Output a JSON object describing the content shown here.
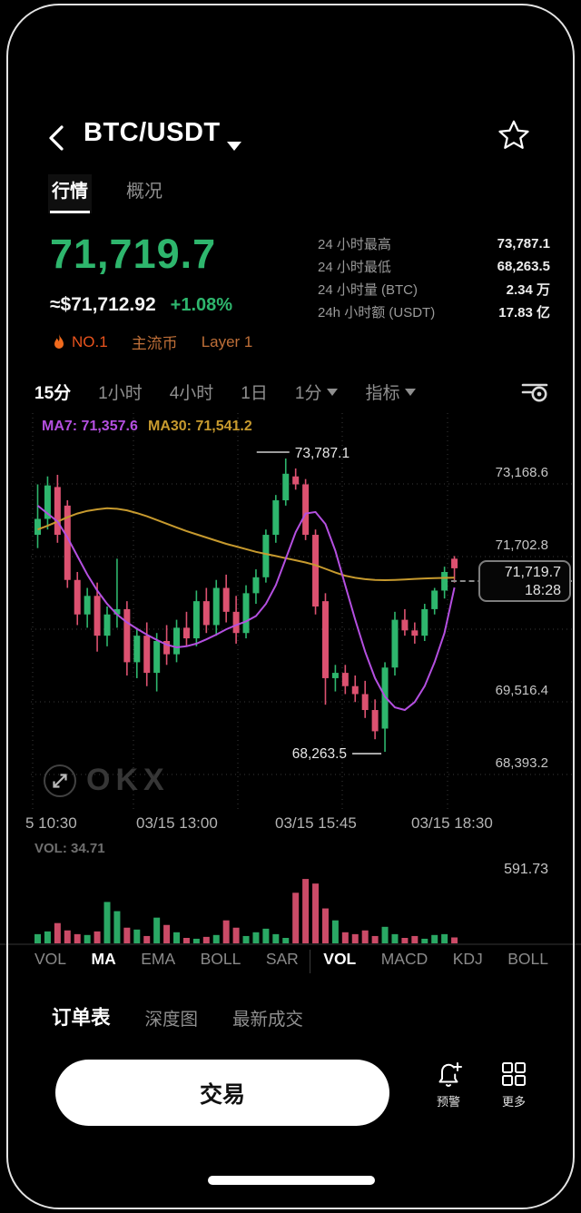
{
  "header": {
    "title": "BTC/USDT"
  },
  "tabs": [
    {
      "label": "行情",
      "active": true
    },
    {
      "label": "概况",
      "active": false
    }
  ],
  "price_block": {
    "price": "71,719.7",
    "fiat": "≈$71,712.92",
    "change": "+1.08%",
    "badges": [
      {
        "label": "NO.1",
        "icon": "flame",
        "color": "#e8531d"
      },
      {
        "label": "主流币",
        "color": "#bf6f38"
      },
      {
        "label": "Layer 1",
        "color": "#bf6f38"
      }
    ]
  },
  "stats": [
    {
      "label": "24 小时最高",
      "value": "73,787.1"
    },
    {
      "label": "24 小时最低",
      "value": "68,263.5"
    },
    {
      "label": "24 小时量 (BTC)",
      "value": "2.34 万"
    },
    {
      "label": "24h 小时额 (USDT)",
      "value": "17.83 亿"
    }
  ],
  "timeframes": [
    {
      "label": "15分",
      "active": true,
      "dropdown": false
    },
    {
      "label": "1小时",
      "active": false,
      "dropdown": false
    },
    {
      "label": "4小时",
      "active": false,
      "dropdown": false
    },
    {
      "label": "1日",
      "active": false,
      "dropdown": false
    },
    {
      "label": "1分",
      "active": false,
      "dropdown": true
    },
    {
      "label": "指标",
      "active": false,
      "dropdown": true
    }
  ],
  "chart": {
    "ma7_label": "MA7: 71,357.6",
    "ma30_label": "MA30: 71,541.2",
    "watermark": "OKX",
    "high_annotation": "73,787.1",
    "low_annotation": "68,263.5",
    "price_tag": {
      "price": "71,719.7",
      "time": "18:28"
    },
    "y_axis": [
      "73,168.6",
      "71,702.8",
      "69,516.4",
      "68,393.2"
    ],
    "x_axis": [
      "5 10:30",
      "03/15 13:00",
      "03/15 15:45",
      "03/15 18:30"
    ]
  },
  "volume": {
    "label": "VOL: 34.71",
    "axis_max": "591.73"
  },
  "chart_data": {
    "type": "candlestick",
    "interval": "15分",
    "title": "BTC/USDT 15-minute candlestick chart",
    "y_ticks": [
      73168.6,
      71702.8,
      69516.4,
      68393.2
    ],
    "x_ticks": [
      "5 10:30",
      "03/15 13:00",
      "03/15 15:45",
      "03/15 18:30"
    ],
    "high": {
      "index": 25,
      "value": 73787.1
    },
    "low": {
      "index": 35,
      "value": 68263.5
    },
    "last": {
      "price": 71719.7,
      "time": "18:28"
    },
    "ma7_last": 71357.6,
    "ma30_last": 71541.2,
    "vol_current": 34.71,
    "vol_axis_max": 591.73,
    "candles": [
      [
        72350,
        73300,
        72100,
        72650
      ],
      [
        72650,
        73450,
        72450,
        73280
      ],
      [
        73250,
        73480,
        72200,
        72350
      ],
      [
        72900,
        73000,
        71350,
        71500
      ],
      [
        71500,
        71650,
        70650,
        70850
      ],
      [
        70850,
        71350,
        70600,
        71200
      ],
      [
        71200,
        71450,
        70150,
        70450
      ],
      [
        70450,
        71000,
        70250,
        70850
      ],
      [
        70850,
        71900,
        70600,
        70950
      ],
      [
        70950,
        71100,
        69700,
        69950
      ],
      [
        69950,
        70600,
        69650,
        70450
      ],
      [
        70450,
        70700,
        69500,
        69750
      ],
      [
        69750,
        70500,
        69400,
        70350
      ],
      [
        70350,
        70650,
        69900,
        70100
      ],
      [
        70100,
        70750,
        69950,
        70600
      ],
      [
        70600,
        70900,
        70250,
        70400
      ],
      [
        70400,
        71300,
        70250,
        71100
      ],
      [
        71100,
        71350,
        70500,
        70650
      ],
      [
        70650,
        71500,
        70450,
        71350
      ],
      [
        71350,
        71600,
        70700,
        70900
      ],
      [
        70900,
        71200,
        70300,
        70500
      ],
      [
        70500,
        71400,
        70400,
        71250
      ],
      [
        71250,
        71700,
        71050,
        71550
      ],
      [
        71550,
        72450,
        71450,
        72350
      ],
      [
        72350,
        73100,
        72200,
        73000
      ],
      [
        73000,
        73787.1,
        72900,
        73500
      ],
      [
        73450,
        73600,
        73200,
        73300
      ],
      [
        73300,
        73400,
        72250,
        72350
      ],
      [
        72350,
        72450,
        70850,
        71000
      ],
      [
        71100,
        71250,
        69150,
        69650
      ],
      [
        69650,
        69900,
        69400,
        69750
      ],
      [
        69750,
        69900,
        69350,
        69500
      ],
      [
        69500,
        69700,
        69200,
        69350
      ],
      [
        69350,
        69600,
        68900,
        69050
      ],
      [
        69050,
        69250,
        68500,
        68650
      ],
      [
        68700,
        69950,
        68263.5,
        69850
      ],
      [
        69850,
        70900,
        69700,
        70750
      ],
      [
        70750,
        70950,
        70450,
        70550
      ],
      [
        70550,
        70700,
        70300,
        70450
      ],
      [
        70450,
        71050,
        70350,
        70950
      ],
      [
        70950,
        71350,
        70850,
        71300
      ],
      [
        71300,
        71750,
        71150,
        71650
      ],
      [
        71900,
        71950,
        71450,
        71719.7
      ]
    ],
    "ma7": [
      72900,
      72750,
      72600,
      72300,
      71950,
      71600,
      71300,
      71050,
      70850,
      70700,
      70580,
      70470,
      70370,
      70280,
      70230,
      70250,
      70300,
      70380,
      70470,
      70570,
      70650,
      70720,
      70820,
      71050,
      71400,
      71900,
      72400,
      72750,
      72780,
      72550,
      72050,
      71400,
      70750,
      70150,
      69650,
      69300,
      69100,
      69050,
      69200,
      69500,
      69950,
      70500,
      71357.6
    ],
    "ma30": [
      72450,
      72520,
      72600,
      72680,
      72750,
      72800,
      72830,
      72850,
      72840,
      72810,
      72760,
      72700,
      72630,
      72560,
      72490,
      72420,
      72360,
      72300,
      72240,
      72180,
      72130,
      72080,
      72030,
      71990,
      71950,
      71910,
      71870,
      71830,
      71780,
      71710,
      71640,
      71580,
      71540,
      71515,
      71500,
      71495,
      71500,
      71510,
      71520,
      71528,
      71534,
      71538,
      71541.2
    ],
    "volumes": [
      54,
      70,
      119,
      76,
      54,
      49,
      70,
      243,
      189,
      92,
      81,
      43,
      151,
      108,
      65,
      32,
      27,
      38,
      49,
      135,
      92,
      43,
      65,
      86,
      54,
      32,
      297,
      378,
      351,
      205,
      135,
      65,
      54,
      76,
      43,
      97,
      54,
      32,
      43,
      27,
      49,
      54,
      34.71
    ],
    "colors": {
      "up": "#2eb66d",
      "down": "#dc5170",
      "ma7": "#b44fe0",
      "ma30": "#c79a2e"
    }
  },
  "indicator_tabs": [
    {
      "label": "VOL",
      "active": false
    },
    {
      "label": "MA",
      "active": true
    },
    {
      "label": "EMA",
      "active": false
    },
    {
      "label": "BOLL",
      "active": false
    },
    {
      "label": "SAR",
      "active": false
    },
    {
      "label": "VOL",
      "active": true
    },
    {
      "label": "MACD",
      "active": false
    },
    {
      "label": "KDJ",
      "active": false
    },
    {
      "label": "BOLL",
      "active": false
    }
  ],
  "order_tabs": [
    {
      "label": "订单表",
      "active": true
    },
    {
      "label": "深度图",
      "active": false
    },
    {
      "label": "最新成交",
      "active": false
    }
  ],
  "action_bar": {
    "trade_label": "交易",
    "alert_label": "预警",
    "more_label": "更多"
  }
}
